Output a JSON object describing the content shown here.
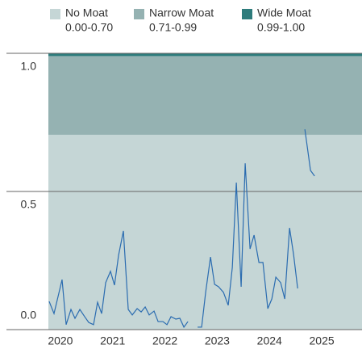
{
  "chart_data": {
    "type": "line",
    "bands": [
      {
        "name": "No Moat",
        "range": "0.00-0.70",
        "color": "#c5d6d6",
        "from": 0,
        "to": 0.705
      },
      {
        "name": "Narrow Moat",
        "range": "0.71-0.99",
        "color": "#95b2b2",
        "from": 0.705,
        "to": 0.99
      },
      {
        "name": "Wide Moat",
        "range": "0.99-1.00",
        "color": "#2e7c7c",
        "from": 0.99,
        "to": 1.0
      }
    ],
    "x": [
      2019.785,
      2019.878,
      2020.032,
      2020.11,
      2020.202,
      2020.279,
      2020.372,
      2020.464,
      2020.542,
      2020.634,
      2020.711,
      2020.789,
      2020.866,
      2020.958,
      2021.035,
      2021.113,
      2021.205,
      2021.298,
      2021.375,
      2021.468,
      2021.545,
      2021.622,
      2021.699,
      2021.792,
      2021.869,
      2021.961,
      2022.039,
      2022.116,
      2022.208,
      2022.285,
      2022.363,
      2022.44,
      2022.532,
      2022.625,
      2022.702,
      2022.779,
      2022.872,
      2022.949,
      2023.026,
      2023.119,
      2023.211,
      2023.289,
      2023.366,
      2023.458,
      2023.535,
      2023.628,
      2023.705,
      2023.798,
      2023.875,
      2023.968,
      2024.045,
      2024.122,
      2024.214,
      2024.292,
      2024.384,
      2024.461,
      2024.539,
      2024.616,
      2024.677,
      2024.785,
      2024.863
    ],
    "series": [
      {
        "color": "#2b6cb0",
        "values": [
          0.102,
          0.058,
          0.181,
          0.018,
          0.073,
          0.041,
          0.073,
          0.047,
          0.026,
          0.018,
          0.099,
          0.058,
          0.17,
          0.211,
          0.161,
          0.269,
          0.357,
          0.073,
          0.053,
          0.076,
          0.064,
          0.082,
          0.053,
          0.067,
          0.029,
          0.029,
          0.018,
          0.047,
          0.038,
          0.041,
          0.009,
          0.029,
          null,
          0.009,
          0.009,
          0.135,
          0.263,
          0.164,
          0.155,
          0.135,
          0.088,
          0.225,
          0.532,
          0.155,
          0.602,
          0.292,
          0.342,
          0.243,
          0.243,
          0.076,
          0.111,
          0.19,
          0.17,
          0.111,
          0.368,
          0.272,
          0.149,
          null,
          0.725,
          0.576,
          0.556
        ]
      }
    ],
    "xlim": [
      2019.77,
      2025.77
    ],
    "xticks": [
      2020,
      2021,
      2022,
      2023,
      2024,
      2025
    ],
    "ylim": [
      0,
      1.0
    ],
    "yticks": [
      {
        "value": 0,
        "label": "0.0"
      },
      {
        "value": 0.5,
        "label": "0.5"
      },
      {
        "value": 1.0,
        "label": "1.0"
      }
    ],
    "grid": true
  }
}
